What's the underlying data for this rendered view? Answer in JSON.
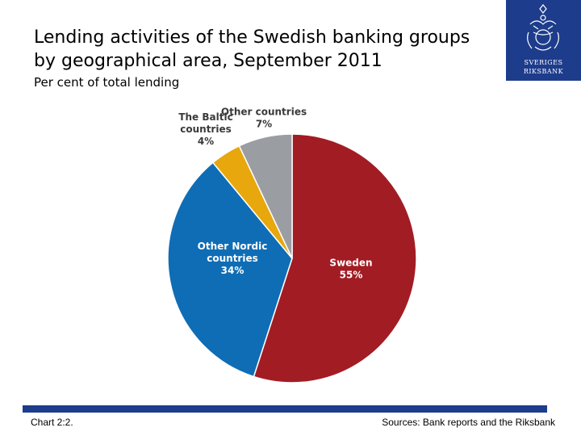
{
  "header": {
    "title_line1": "Lending activities of the Swedish banking groups",
    "title_line2": "by geographical area, September 2011",
    "subtitle": "Per cent of total lending"
  },
  "logo": {
    "name_line1": "SVERIGES",
    "name_line2": "RIKSBANK",
    "color": "#1e3c8c"
  },
  "chart_data": {
    "type": "pie",
    "title": "Lending activities of the Swedish banking groups by geographical area, September 2011",
    "subtitle": "Per cent of total lending",
    "slices": [
      {
        "label_lines": [
          "Sweden"
        ],
        "value": 55,
        "value_label": "55%",
        "color": "#a21c24"
      },
      {
        "label_lines": [
          "Other Nordic",
          "countries"
        ],
        "value": 34,
        "value_label": "34%",
        "color": "#0f6db5"
      },
      {
        "label_lines": [
          "The Baltic",
          "countries"
        ],
        "value": 4,
        "value_label": "4%",
        "color": "#e7a70d"
      },
      {
        "label_lines": [
          "Other countries"
        ],
        "value": 7,
        "value_label": "7%",
        "color": "#9a9ea3"
      }
    ]
  },
  "footer": {
    "chart_id": "Chart 2:2.",
    "sources": "Sources: Bank reports and the Riksbank"
  }
}
